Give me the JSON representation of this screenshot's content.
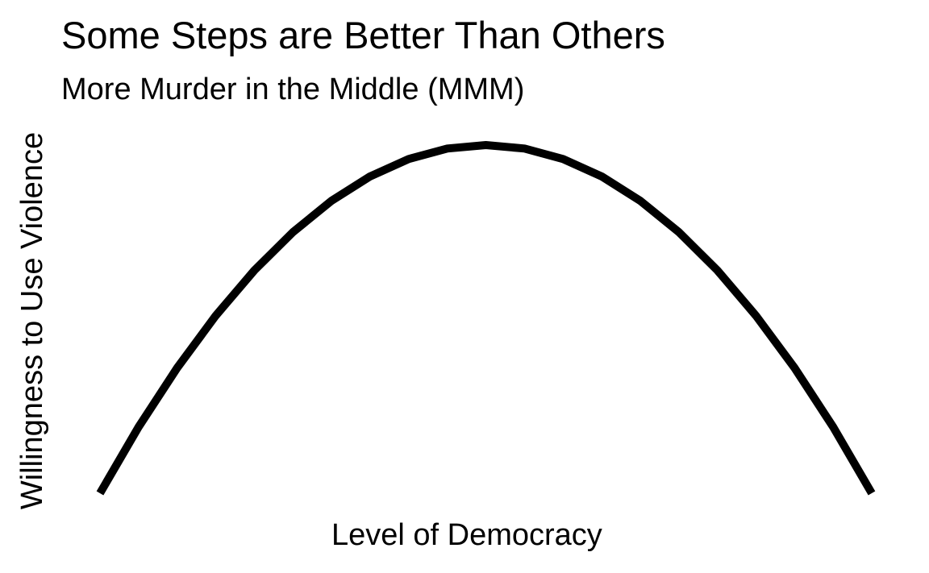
{
  "chart_data": {
    "type": "line",
    "title": "Some Steps are Better Than Others",
    "subtitle": "More Murder in the Middle (MMM)",
    "xlabel": "Level of Democracy",
    "ylabel": "Willingness to Use Violence",
    "xlim": [
      0,
      1
    ],
    "ylim": [
      0,
      1
    ],
    "grid": false,
    "legend": "none",
    "line_color": "#000000",
    "series": [
      {
        "x": [
          0.0,
          0.05,
          0.1,
          0.15,
          0.2,
          0.25,
          0.3,
          0.35,
          0.4,
          0.45,
          0.5,
          0.55,
          0.6,
          0.65,
          0.7,
          0.75,
          0.8,
          0.85,
          0.9,
          0.95,
          1.0
        ],
        "y": [
          0.0,
          0.19,
          0.36,
          0.51,
          0.64,
          0.75,
          0.84,
          0.91,
          0.96,
          0.99,
          1.0,
          0.99,
          0.96,
          0.91,
          0.84,
          0.75,
          0.64,
          0.51,
          0.36,
          0.19,
          0.0
        ]
      }
    ]
  }
}
